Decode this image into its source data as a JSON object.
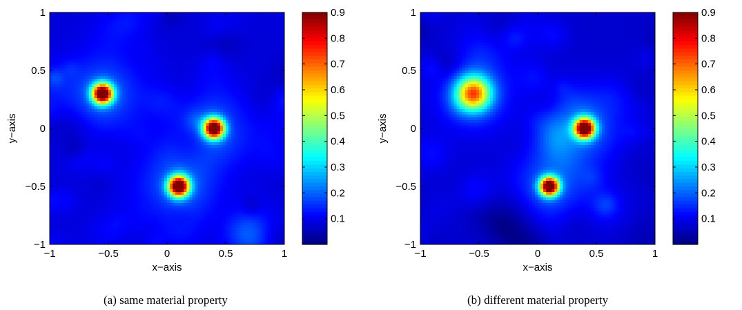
{
  "chart_data": [
    {
      "type": "heatmap",
      "caption": "(a)  same material property",
      "xlabel": "x−axis",
      "ylabel": "y−axis",
      "xlim": [
        -1,
        1
      ],
      "ylim": [
        -1,
        1
      ],
      "x_ticks": [
        "−1",
        "−0.5",
        "0",
        "0.5",
        "1"
      ],
      "y_ticks": [
        "−1",
        "−0.5",
        "0",
        "0.5",
        "1"
      ],
      "colorbar": {
        "range": [
          0,
          0.9
        ],
        "colormap": "jet",
        "ticks": [
          "0.1",
          "0.2",
          "0.3",
          "0.4",
          "0.5",
          "0.6",
          "0.7",
          "0.8",
          "0.9"
        ]
      },
      "background_level": 0.08,
      "peaks": [
        {
          "x": -0.55,
          "y": 0.3,
          "value": 0.9,
          "width": 0.06
        },
        {
          "x": 0.4,
          "y": 0.0,
          "value": 0.9,
          "width": 0.06
        },
        {
          "x": 0.1,
          "y": -0.5,
          "value": 0.9,
          "width": 0.06
        }
      ],
      "noise_seed": 11
    },
    {
      "type": "heatmap",
      "caption": "(b)  different material property",
      "xlabel": "x−axis",
      "ylabel": "y−axis",
      "xlim": [
        -1,
        1
      ],
      "ylim": [
        -1,
        1
      ],
      "x_ticks": [
        "−1",
        "−0.5",
        "0",
        "0.5",
        "1"
      ],
      "y_ticks": [
        "−1",
        "−0.5",
        "0",
        "0.5",
        "1"
      ],
      "colorbar": {
        "range": [
          0,
          0.9
        ],
        "colormap": "jet",
        "ticks": [
          "0.1",
          "0.2",
          "0.3",
          "0.4",
          "0.5",
          "0.6",
          "0.7",
          "0.8",
          "0.9"
        ]
      },
      "background_level": 0.07,
      "peaks": [
        {
          "x": -0.55,
          "y": 0.3,
          "value": 0.55,
          "width": 0.1
        },
        {
          "x": 0.4,
          "y": 0.0,
          "value": 0.9,
          "width": 0.06
        },
        {
          "x": 0.1,
          "y": -0.5,
          "value": 0.9,
          "width": 0.055
        }
      ],
      "noise_seed": 29
    }
  ]
}
